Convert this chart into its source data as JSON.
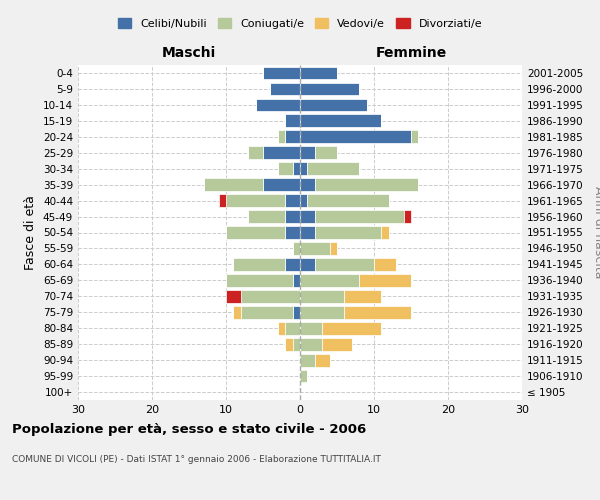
{
  "age_groups": [
    "100+",
    "95-99",
    "90-94",
    "85-89",
    "80-84",
    "75-79",
    "70-74",
    "65-69",
    "60-64",
    "55-59",
    "50-54",
    "45-49",
    "40-44",
    "35-39",
    "30-34",
    "25-29",
    "20-24",
    "15-19",
    "10-14",
    "5-9",
    "0-4"
  ],
  "birth_years": [
    "≤ 1905",
    "1906-1910",
    "1911-1915",
    "1916-1920",
    "1921-1925",
    "1926-1930",
    "1931-1935",
    "1936-1940",
    "1941-1945",
    "1946-1950",
    "1951-1955",
    "1956-1960",
    "1961-1965",
    "1966-1970",
    "1971-1975",
    "1976-1980",
    "1981-1985",
    "1986-1990",
    "1991-1995",
    "1996-2000",
    "2001-2005"
  ],
  "maschi": {
    "celibi": [
      0,
      0,
      0,
      0,
      0,
      1,
      0,
      1,
      2,
      0,
      2,
      2,
      2,
      5,
      1,
      5,
      2,
      2,
      6,
      4,
      5
    ],
    "coniugati": [
      0,
      0,
      0,
      1,
      2,
      7,
      8,
      9,
      7,
      1,
      8,
      5,
      8,
      8,
      2,
      2,
      1,
      0,
      0,
      0,
      0
    ],
    "vedovi": [
      0,
      0,
      0,
      1,
      1,
      1,
      0,
      0,
      0,
      0,
      0,
      0,
      0,
      0,
      0,
      0,
      0,
      0,
      0,
      0,
      0
    ],
    "divorziati": [
      0,
      0,
      0,
      0,
      0,
      0,
      2,
      0,
      0,
      0,
      0,
      0,
      1,
      0,
      0,
      0,
      0,
      0,
      0,
      0,
      0
    ]
  },
  "femmine": {
    "nubili": [
      0,
      0,
      0,
      0,
      0,
      0,
      0,
      0,
      2,
      0,
      2,
      2,
      1,
      2,
      1,
      2,
      15,
      11,
      9,
      8,
      5
    ],
    "coniugate": [
      0,
      1,
      2,
      3,
      3,
      6,
      6,
      8,
      8,
      4,
      9,
      12,
      11,
      14,
      7,
      3,
      1,
      0,
      0,
      0,
      0
    ],
    "vedove": [
      0,
      0,
      2,
      4,
      8,
      9,
      5,
      7,
      3,
      1,
      1,
      0,
      0,
      0,
      0,
      0,
      0,
      0,
      0,
      0,
      0
    ],
    "divorziate": [
      0,
      0,
      0,
      0,
      0,
      0,
      0,
      0,
      0,
      0,
      0,
      1,
      0,
      0,
      0,
      0,
      0,
      0,
      0,
      0,
      0
    ]
  },
  "colors": {
    "celibi_nubili": "#4472a8",
    "coniugati": "#b5c99a",
    "vedovi": "#f0c060",
    "divorziati": "#cc2222"
  },
  "xlim": 30,
  "title": "Popolazione per età, sesso e stato civile - 2006",
  "subtitle": "COMUNE DI VICOLI (PE) - Dati ISTAT 1° gennaio 2006 - Elaborazione TUTTITALIA.IT",
  "ylabel_left": "Fasce di età",
  "ylabel_right": "Anni di nascita",
  "xlabel_maschi": "Maschi",
  "xlabel_femmine": "Femmine",
  "legend_labels": [
    "Celibi/Nubili",
    "Coniugati/e",
    "Vedovi/e",
    "Divorziati/e"
  ],
  "xticks": [
    -30,
    -20,
    -10,
    0,
    10,
    20,
    30
  ],
  "xticklabels": [
    "30",
    "20",
    "10",
    "0",
    "10",
    "20",
    "30"
  ],
  "bg_color": "#f0f0f0",
  "plot_bg": "#ffffff"
}
